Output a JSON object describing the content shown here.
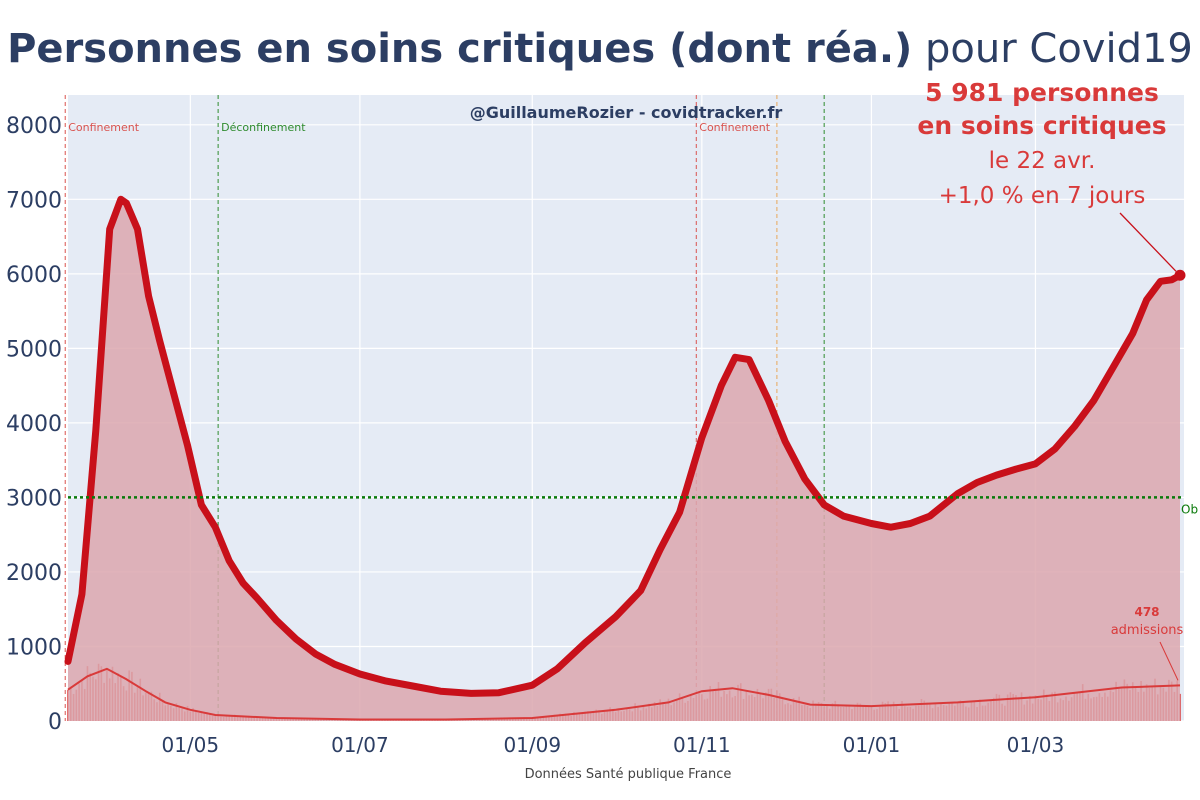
{
  "chart_data": {
    "type": "area",
    "title_bold": "Personnes en soins critiques (dont réa.)",
    "title_rest": " pour Covid19",
    "watermark": "@GuillaumeRozier - covidtracker.fr",
    "source": "Données Santé publique France",
    "x_start": "2020-03-18",
    "x_end": "2021-04-22",
    "ylim": [
      0,
      8400
    ],
    "yticks": [
      0,
      1000,
      2000,
      3000,
      4000,
      5000,
      6000,
      7000,
      8000
    ],
    "xticks": [
      {
        "date": "2020-05-01",
        "label": "01/05"
      },
      {
        "date": "2020-07-01",
        "label": "01/07"
      },
      {
        "date": "2020-09-01",
        "label": "01/09"
      },
      {
        "date": "2020-11-01",
        "label": "01/11"
      },
      {
        "date": "2021-01-01",
        "label": "01/01"
      },
      {
        "date": "2021-03-01",
        "label": "01/03"
      }
    ],
    "grid": true,
    "series": [
      {
        "name": "soins critiques",
        "color": "#c8101a",
        "fill": "#dca7ae",
        "points": [
          [
            "2020-03-18",
            800
          ],
          [
            "2020-03-23",
            1700
          ],
          [
            "2020-03-28",
            3900
          ],
          [
            "2020-04-02",
            6600
          ],
          [
            "2020-04-06",
            7000
          ],
          [
            "2020-04-08",
            6950
          ],
          [
            "2020-04-12",
            6600
          ],
          [
            "2020-04-16",
            5700
          ],
          [
            "2020-04-20",
            5100
          ],
          [
            "2020-04-25",
            4400
          ],
          [
            "2020-04-30",
            3700
          ],
          [
            "2020-05-05",
            2900
          ],
          [
            "2020-05-10",
            2600
          ],
          [
            "2020-05-15",
            2150
          ],
          [
            "2020-05-20",
            1850
          ],
          [
            "2020-05-25",
            1650
          ],
          [
            "2020-06-01",
            1350
          ],
          [
            "2020-06-08",
            1100
          ],
          [
            "2020-06-15",
            900
          ],
          [
            "2020-06-22",
            760
          ],
          [
            "2020-07-01",
            630
          ],
          [
            "2020-07-10",
            540
          ],
          [
            "2020-07-20",
            470
          ],
          [
            "2020-07-30",
            400
          ],
          [
            "2020-08-10",
            370
          ],
          [
            "2020-08-20",
            380
          ],
          [
            "2020-09-01",
            480
          ],
          [
            "2020-09-10",
            700
          ],
          [
            "2020-09-20",
            1050
          ],
          [
            "2020-10-01",
            1400
          ],
          [
            "2020-10-10",
            1750
          ],
          [
            "2020-10-17",
            2300
          ],
          [
            "2020-10-24",
            2800
          ],
          [
            "2020-11-01",
            3800
          ],
          [
            "2020-11-08",
            4500
          ],
          [
            "2020-11-13",
            4880
          ],
          [
            "2020-11-18",
            4850
          ],
          [
            "2020-11-25",
            4300
          ],
          [
            "2020-12-01",
            3750
          ],
          [
            "2020-12-08",
            3250
          ],
          [
            "2020-12-15",
            2900
          ],
          [
            "2020-12-22",
            2750
          ],
          [
            "2021-01-01",
            2650
          ],
          [
            "2021-01-08",
            2600
          ],
          [
            "2021-01-15",
            2650
          ],
          [
            "2021-01-22",
            2750
          ],
          [
            "2021-02-01",
            3050
          ],
          [
            "2021-02-08",
            3200
          ],
          [
            "2021-02-15",
            3300
          ],
          [
            "2021-02-22",
            3380
          ],
          [
            "2021-03-01",
            3450
          ],
          [
            "2021-03-08",
            3650
          ],
          [
            "2021-03-15",
            3950
          ],
          [
            "2021-03-22",
            4300
          ],
          [
            "2021-03-29",
            4750
          ],
          [
            "2021-04-05",
            5200
          ],
          [
            "2021-04-10",
            5650
          ],
          [
            "2021-04-15",
            5900
          ],
          [
            "2021-04-19",
            5920
          ],
          [
            "2021-04-22",
            5981
          ]
        ]
      },
      {
        "name": "admissions",
        "color": "#d93a3a",
        "points": [
          [
            "2020-03-18",
            420
          ],
          [
            "2020-03-25",
            600
          ],
          [
            "2020-04-01",
            700
          ],
          [
            "2020-04-08",
            560
          ],
          [
            "2020-04-15",
            400
          ],
          [
            "2020-04-22",
            250
          ],
          [
            "2020-05-01",
            150
          ],
          [
            "2020-05-10",
            80
          ],
          [
            "2020-06-01",
            40
          ],
          [
            "2020-07-01",
            20
          ],
          [
            "2020-08-01",
            20
          ],
          [
            "2020-09-01",
            40
          ],
          [
            "2020-10-01",
            150
          ],
          [
            "2020-10-20",
            250
          ],
          [
            "2020-11-01",
            400
          ],
          [
            "2020-11-12",
            440
          ],
          [
            "2020-11-25",
            350
          ],
          [
            "2020-12-10",
            220
          ],
          [
            "2021-01-01",
            200
          ],
          [
            "2021-02-01",
            250
          ],
          [
            "2021-03-01",
            320
          ],
          [
            "2021-04-01",
            450
          ],
          [
            "2021-04-22",
            478
          ]
        ]
      }
    ],
    "reference_line": {
      "value": 3000,
      "label": "Ob",
      "color": "#0a7a0a"
    },
    "events": [
      {
        "date": "2020-03-17",
        "label": "Confinement",
        "color": "#d9534f"
      },
      {
        "date": "2020-05-11",
        "label": "Déconfinement",
        "color": "#2e8b2e"
      },
      {
        "date": "2020-10-30",
        "label": "Confinement",
        "color": "#d9534f"
      },
      {
        "date": "2020-11-28",
        "label": "",
        "color": "#e8a85a"
      },
      {
        "date": "2020-12-15",
        "label": "",
        "color": "#2e8b2e"
      }
    ],
    "annotation": {
      "line1": "5 981 personnes",
      "line2": "en soins critiques",
      "line3": "le 22 avr.",
      "line4": "+1,0 % en 7 jours",
      "value": 5981,
      "date": "2021-04-22"
    },
    "admissions_annotation": {
      "value_label": "478",
      "label": "admissions",
      "value": 478,
      "date": "2021-04-22"
    }
  }
}
